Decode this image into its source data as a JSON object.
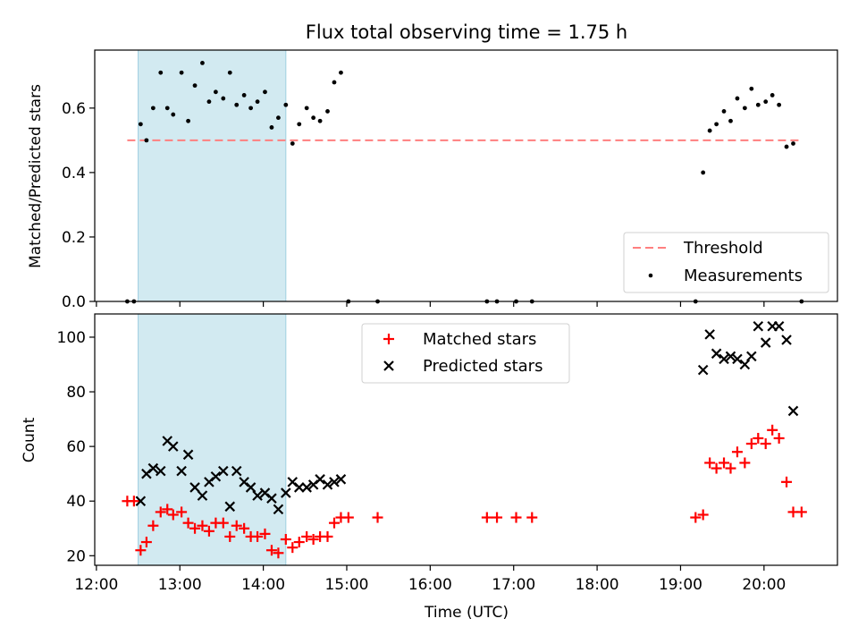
{
  "chart_data": [
    {
      "type": "scatter",
      "title": "Flux total observing time = 1.75 h",
      "xlabel": "",
      "ylabel": "Matched/Predicted stars",
      "ylim": [
        0,
        0.78
      ],
      "yticks": [
        0.0,
        0.2,
        0.4,
        0.6
      ],
      "ytick_labels": [
        "0.0",
        "0.2",
        "0.4",
        "0.6"
      ],
      "xlim_hours": [
        11.98,
        20.88
      ],
      "shaded_span_hours": [
        12.5,
        14.27
      ],
      "shaded_color": "#add8e6",
      "legend_placement": "lower right",
      "threshold": {
        "name": "Threshold",
        "y": 0.5,
        "x_range_hours": [
          12.37,
          20.45
        ],
        "color": "#ff6b6b"
      },
      "series": [
        {
          "name": "Measurements",
          "color": "#000000",
          "marker": "dot",
          "x_hours": [
            12.37,
            12.45,
            12.53,
            12.6,
            12.68,
            12.77,
            12.85,
            12.92,
            13.02,
            13.1,
            13.18,
            13.27,
            13.35,
            13.43,
            13.52,
            13.6,
            13.68,
            13.77,
            13.85,
            13.93,
            14.02,
            14.1,
            14.18,
            14.27,
            14.35,
            14.43,
            14.52,
            14.6,
            14.68,
            14.77,
            14.85,
            14.93,
            15.02,
            15.37,
            16.68,
            16.8,
            17.03,
            17.22,
            19.18,
            19.27,
            19.35,
            19.43,
            19.52,
            19.6,
            19.68,
            19.77,
            19.85,
            19.93,
            20.02,
            20.1,
            20.18,
            20.27,
            20.35,
            20.45
          ],
          "y": [
            0,
            0,
            0.55,
            0.5,
            0.6,
            0.71,
            0.6,
            0.58,
            0.71,
            0.56,
            0.67,
            0.74,
            0.62,
            0.65,
            0.63,
            0.71,
            0.61,
            0.64,
            0.6,
            0.62,
            0.65,
            0.54,
            0.57,
            0.61,
            0.49,
            0.55,
            0.6,
            0.57,
            0.56,
            0.59,
            0.68,
            0.71,
            0,
            0,
            0,
            0,
            0,
            0,
            0,
            0.4,
            0.53,
            0.55,
            0.59,
            0.56,
            0.63,
            0.6,
            0.66,
            0.61,
            0.62,
            0.64,
            0.61,
            0.48,
            0.49,
            0
          ]
        }
      ]
    },
    {
      "type": "scatter",
      "title": "",
      "xlabel": "Time (UTC)",
      "ylabel": "Count",
      "ylim": [
        16.5,
        108.5
      ],
      "yticks": [
        20,
        40,
        60,
        80,
        100
      ],
      "ytick_labels": [
        "20",
        "40",
        "60",
        "80",
        "100"
      ],
      "xlim_hours": [
        11.98,
        20.88
      ],
      "xticks_hours": [
        12,
        13,
        14,
        15,
        16,
        17,
        18,
        19,
        20
      ],
      "xtick_labels": [
        "12:00",
        "13:00",
        "14:00",
        "15:00",
        "16:00",
        "17:00",
        "18:00",
        "19:00",
        "20:00"
      ],
      "shaded_span_hours": [
        12.5,
        14.27
      ],
      "shaded_color": "#add8e6",
      "legend_placement": "upper center",
      "series": [
        {
          "name": "Matched stars",
          "color": "#ff0000",
          "marker": "plus",
          "x_hours": [
            12.37,
            12.45,
            12.53,
            12.6,
            12.68,
            12.77,
            12.85,
            12.92,
            13.02,
            13.1,
            13.18,
            13.27,
            13.35,
            13.43,
            13.52,
            13.6,
            13.68,
            13.77,
            13.85,
            13.93,
            14.02,
            14.1,
            14.18,
            14.27,
            14.35,
            14.43,
            14.52,
            14.6,
            14.68,
            14.77,
            14.85,
            14.93,
            15.02,
            15.37,
            16.68,
            16.8,
            17.03,
            17.22,
            19.18,
            19.27,
            19.35,
            19.43,
            19.52,
            19.6,
            19.68,
            19.77,
            19.85,
            19.93,
            20.02,
            20.1,
            20.18,
            20.27,
            20.35,
            20.45
          ],
          "y": [
            40,
            40,
            22,
            25,
            31,
            36,
            37,
            35,
            36,
            32,
            30,
            31,
            29,
            32,
            32,
            27,
            31,
            30,
            27,
            27,
            28,
            22,
            21,
            26,
            23,
            25,
            27,
            26,
            27,
            27,
            32,
            34,
            34,
            34,
            34,
            34,
            34,
            34,
            34,
            35,
            54,
            52,
            54,
            52,
            58,
            54,
            61,
            63,
            61,
            66,
            63,
            47,
            36,
            36
          ]
        },
        {
          "name": "Predicted stars",
          "color": "#000000",
          "marker": "x",
          "x_hours": [
            12.53,
            12.6,
            12.68,
            12.77,
            12.85,
            12.92,
            13.02,
            13.1,
            13.18,
            13.27,
            13.35,
            13.43,
            13.52,
            13.6,
            13.68,
            13.77,
            13.85,
            13.93,
            14.02,
            14.1,
            14.18,
            14.27,
            14.35,
            14.43,
            14.52,
            14.6,
            14.68,
            14.77,
            14.85,
            14.93,
            19.27,
            19.35,
            19.43,
            19.52,
            19.6,
            19.68,
            19.77,
            19.85,
            19.93,
            20.02,
            20.1,
            20.18,
            20.27,
            20.35
          ],
          "y": [
            40,
            50,
            52,
            51,
            62,
            60,
            51,
            57,
            45,
            42,
            47,
            49,
            51,
            38,
            51,
            47,
            45,
            42,
            43,
            41,
            37,
            43,
            47,
            45,
            45,
            46,
            48,
            46,
            47,
            48,
            88,
            101,
            94,
            92,
            93,
            92,
            90,
            93,
            104,
            98,
            104,
            104,
            99,
            73
          ]
        }
      ]
    }
  ]
}
